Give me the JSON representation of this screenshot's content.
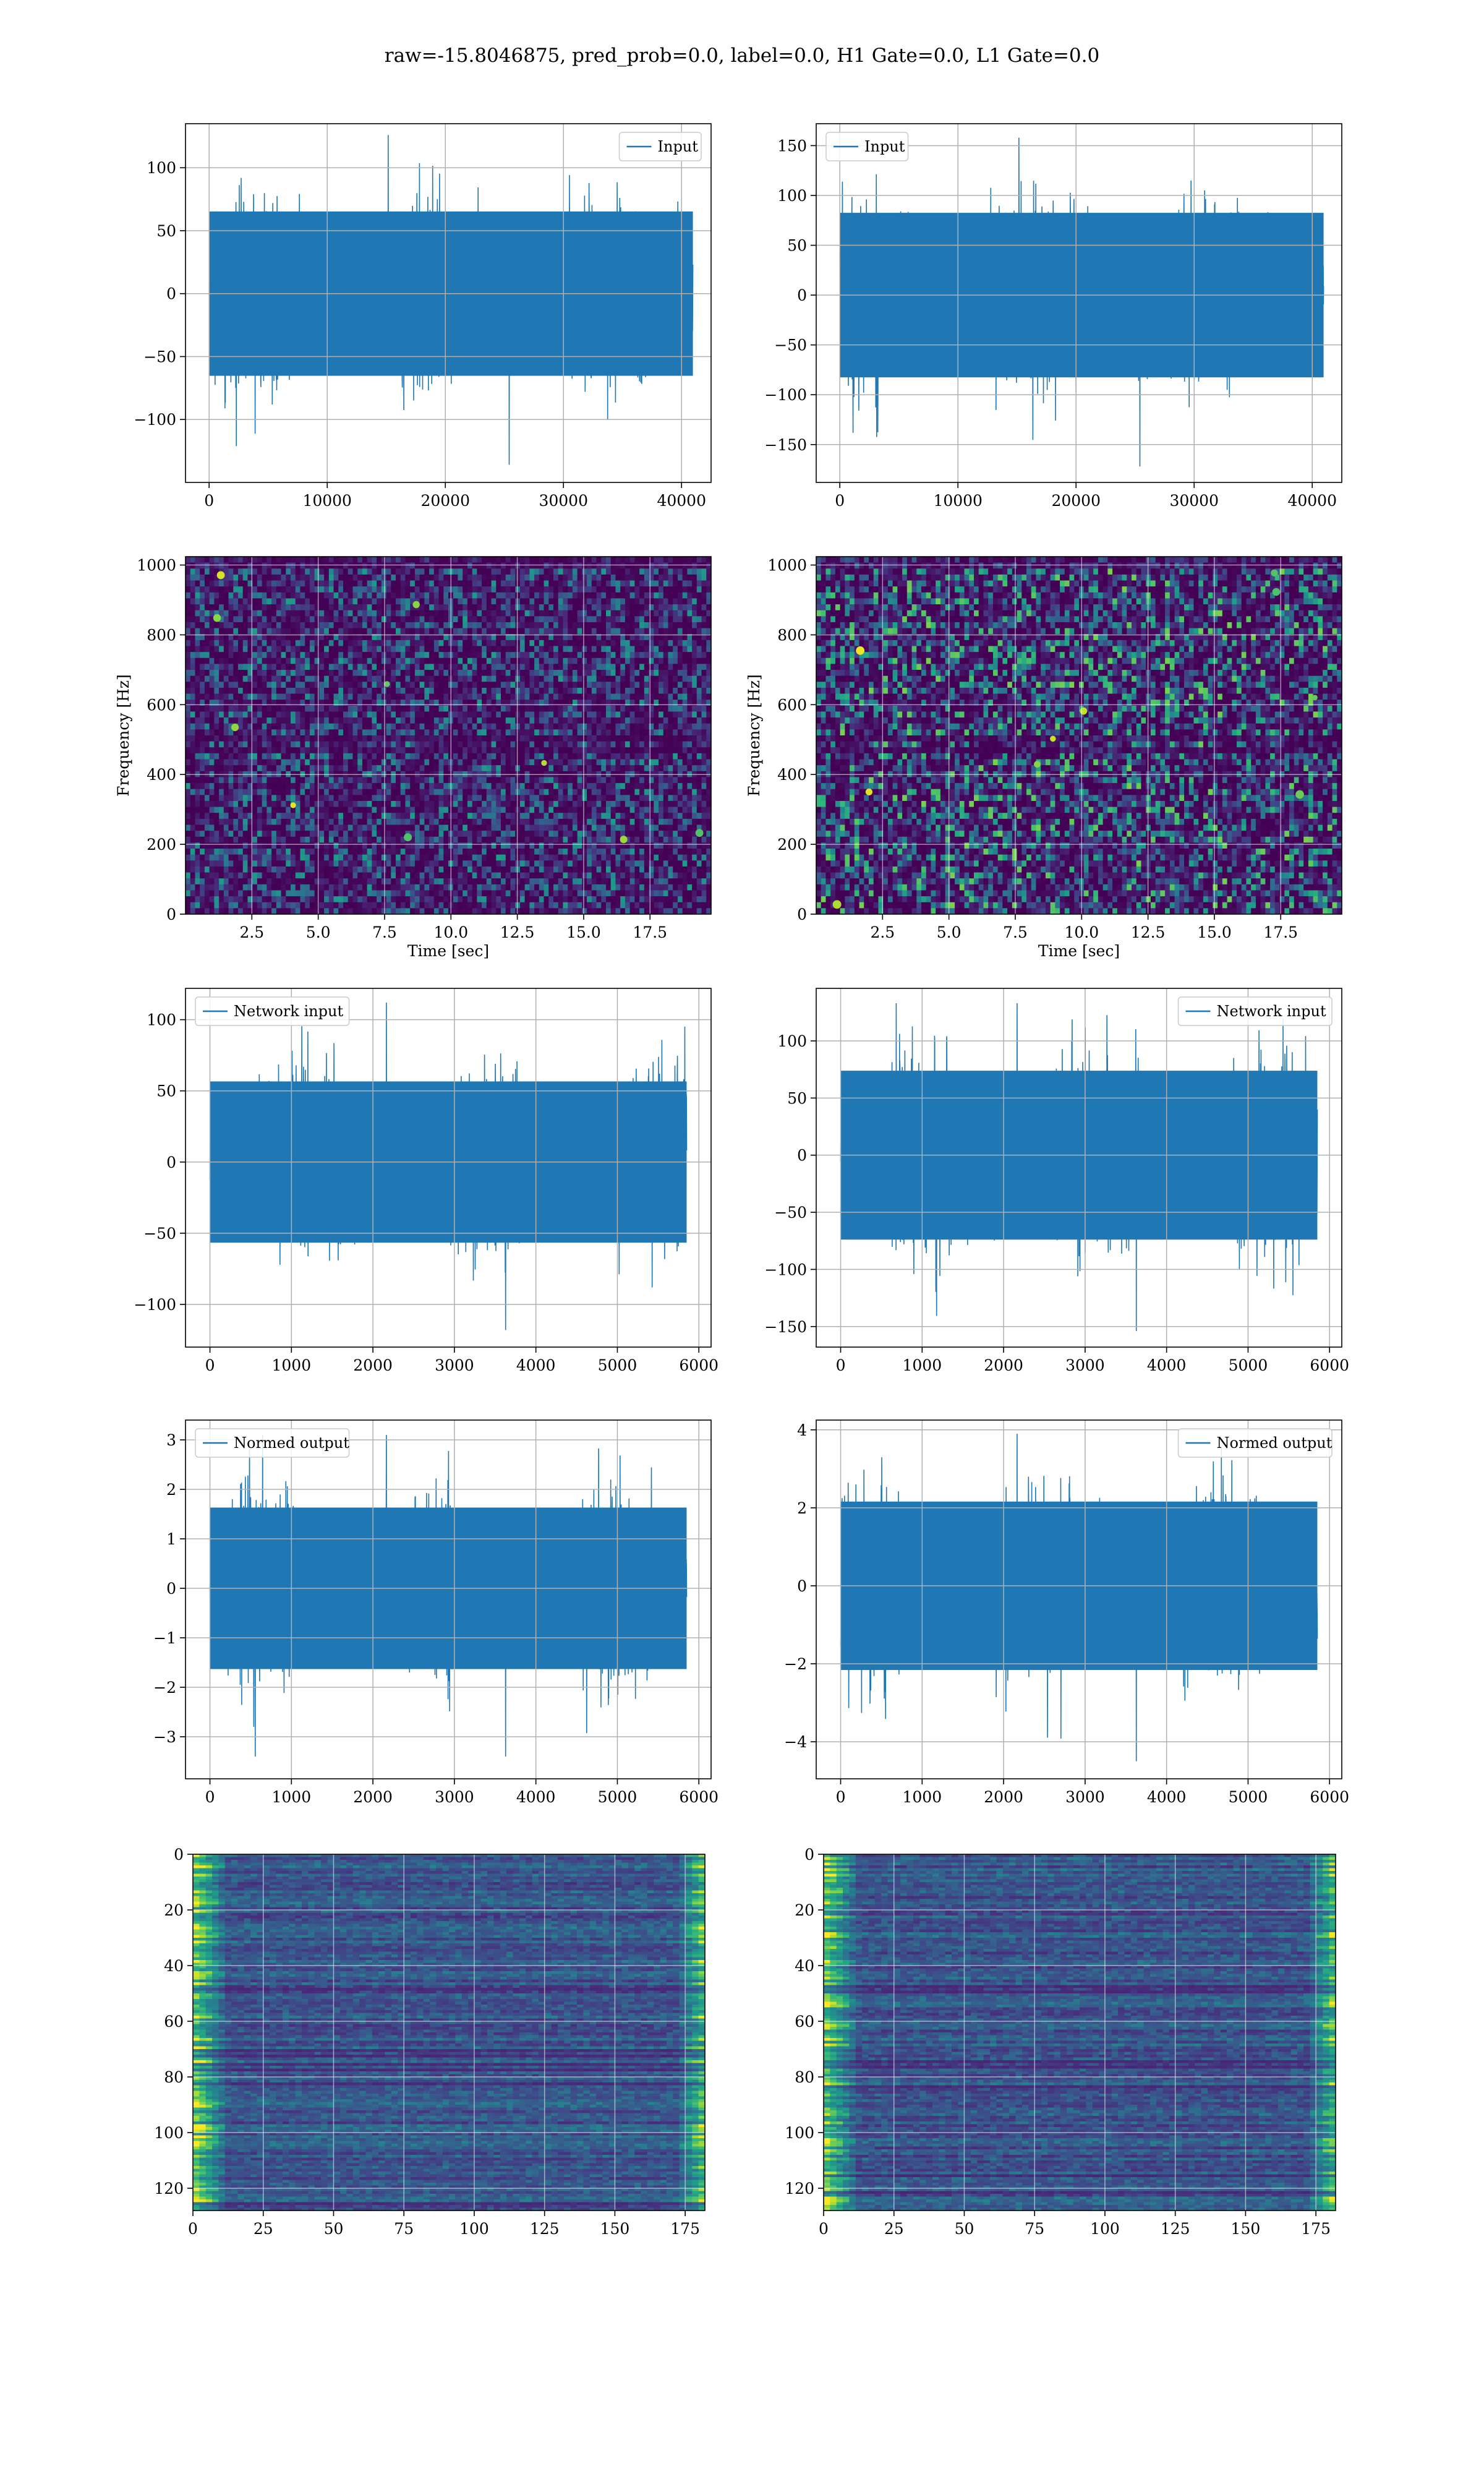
{
  "figure": {
    "suptitle": "raw=-15.8046875, pred_prob=0.0, label=0.0, H1 Gate=0.0, L1 Gate=0.0",
    "colors": {
      "line": "#1f77b4",
      "grid": "#b0b0b0",
      "axes": "#000000"
    }
  },
  "chart_data": [
    {
      "id": "input-left",
      "type": "line",
      "row": 1,
      "col": "left",
      "series": [
        {
          "name": "Input",
          "x_range": [
            0,
            40960
          ],
          "y_envelope": [
            -136,
            126
          ],
          "description_points": []
        }
      ],
      "legend": "upper right",
      "xlim": [
        -2000,
        42500
      ],
      "ylim": [
        -150,
        135
      ],
      "xticks": [
        0,
        10000,
        20000,
        30000,
        40000
      ],
      "yticks": [
        -100,
        -50,
        0,
        50,
        100
      ],
      "grid": true
    },
    {
      "id": "input-right",
      "type": "line",
      "row": 1,
      "col": "right",
      "series": [
        {
          "name": "Input",
          "x_range": [
            0,
            40960
          ],
          "y_envelope": [
            -172,
            158
          ],
          "description_points": []
        }
      ],
      "legend": "upper left",
      "xlim": [
        -2000,
        42500
      ],
      "ylim": [
        -188,
        172
      ],
      "xticks": [
        0,
        10000,
        20000,
        30000,
        40000
      ],
      "yticks": [
        -150,
        -100,
        -50,
        0,
        50,
        100,
        150
      ],
      "grid": true
    },
    {
      "id": "spec-left",
      "type": "heatmap",
      "row": 2,
      "col": "left",
      "xlabel": "Time [sec]",
      "ylabel": "Frequency [Hz]",
      "xlim": [
        0,
        19.8
      ],
      "ylim": [
        0,
        1024
      ],
      "xticks": [
        2.5,
        5.0,
        7.5,
        10.0,
        12.5,
        15.0,
        17.5
      ],
      "yticks": [
        0,
        200,
        400,
        600,
        800,
        1000
      ],
      "colormap": "viridis",
      "intensity": 0.55,
      "grid": true
    },
    {
      "id": "spec-right",
      "type": "heatmap",
      "row": 2,
      "col": "right",
      "xlabel": "Time [sec]",
      "ylabel": "Frequency [Hz]",
      "xlim": [
        0,
        19.8
      ],
      "ylim": [
        0,
        1024
      ],
      "xticks": [
        2.5,
        5.0,
        7.5,
        10.0,
        12.5,
        15.0,
        17.5
      ],
      "yticks": [
        0,
        200,
        400,
        600,
        800,
        1000
      ],
      "colormap": "viridis",
      "intensity": 0.8,
      "grid": true
    },
    {
      "id": "net-left",
      "type": "line",
      "row": 3,
      "col": "left",
      "series": [
        {
          "name": "Network input",
          "x_range": [
            0,
            5850
          ],
          "y_envelope": [
            -118,
            112
          ]
        }
      ],
      "legend": "upper left",
      "xlim": [
        -300,
        6150
      ],
      "ylim": [
        -130,
        122
      ],
      "xticks": [
        0,
        1000,
        2000,
        3000,
        4000,
        5000,
        6000
      ],
      "yticks": [
        -100,
        -50,
        0,
        50,
        100
      ],
      "grid": true
    },
    {
      "id": "net-right",
      "type": "line",
      "row": 3,
      "col": "right",
      "series": [
        {
          "name": "Network input",
          "x_range": [
            0,
            5850
          ],
          "y_envelope": [
            -154,
            133
          ]
        }
      ],
      "legend": "upper right",
      "xlim": [
        -300,
        6150
      ],
      "ylim": [
        -168,
        146
      ],
      "xticks": [
        0,
        1000,
        2000,
        3000,
        4000,
        5000,
        6000
      ],
      "yticks": [
        -150,
        -100,
        -50,
        0,
        50,
        100
      ],
      "grid": true
    },
    {
      "id": "norm-left",
      "type": "line",
      "row": 4,
      "col": "left",
      "series": [
        {
          "name": "Normed output",
          "x_range": [
            0,
            5850
          ],
          "y_envelope": [
            -3.4,
            3.1
          ]
        }
      ],
      "legend": "upper left",
      "xlim": [
        -300,
        6150
      ],
      "ylim": [
        -3.85,
        3.4
      ],
      "xticks": [
        0,
        1000,
        2000,
        3000,
        4000,
        5000,
        6000
      ],
      "yticks": [
        -3,
        -2,
        -1,
        0,
        1,
        2,
        3
      ],
      "grid": true
    },
    {
      "id": "norm-right",
      "type": "line",
      "row": 4,
      "col": "right",
      "series": [
        {
          "name": "Normed output",
          "x_range": [
            0,
            5850
          ],
          "y_envelope": [
            -4.5,
            3.9
          ]
        }
      ],
      "legend": "upper right",
      "xlim": [
        -300,
        6150
      ],
      "ylim": [
        -4.95,
        4.25
      ],
      "xticks": [
        0,
        1000,
        2000,
        3000,
        4000,
        5000,
        6000
      ],
      "yticks": [
        -4,
        -2,
        0,
        2,
        4
      ],
      "grid": true
    },
    {
      "id": "feat-left",
      "type": "heatmap",
      "row": 5,
      "col": "left",
      "xlim": [
        0,
        182
      ],
      "ylim": [
        128,
        0
      ],
      "xticks": [
        0,
        25,
        50,
        75,
        100,
        125,
        150,
        175
      ],
      "yticks": [
        0,
        20,
        40,
        60,
        80,
        100,
        120
      ],
      "colormap": "viridis",
      "grid": true
    },
    {
      "id": "feat-right",
      "type": "heatmap",
      "row": 5,
      "col": "right",
      "xlim": [
        0,
        182
      ],
      "ylim": [
        128,
        0
      ],
      "xticks": [
        0,
        25,
        50,
        75,
        100,
        125,
        150,
        175
      ],
      "yticks": [
        0,
        20,
        40,
        60,
        80,
        100,
        120
      ],
      "colormap": "viridis",
      "grid": true
    }
  ]
}
